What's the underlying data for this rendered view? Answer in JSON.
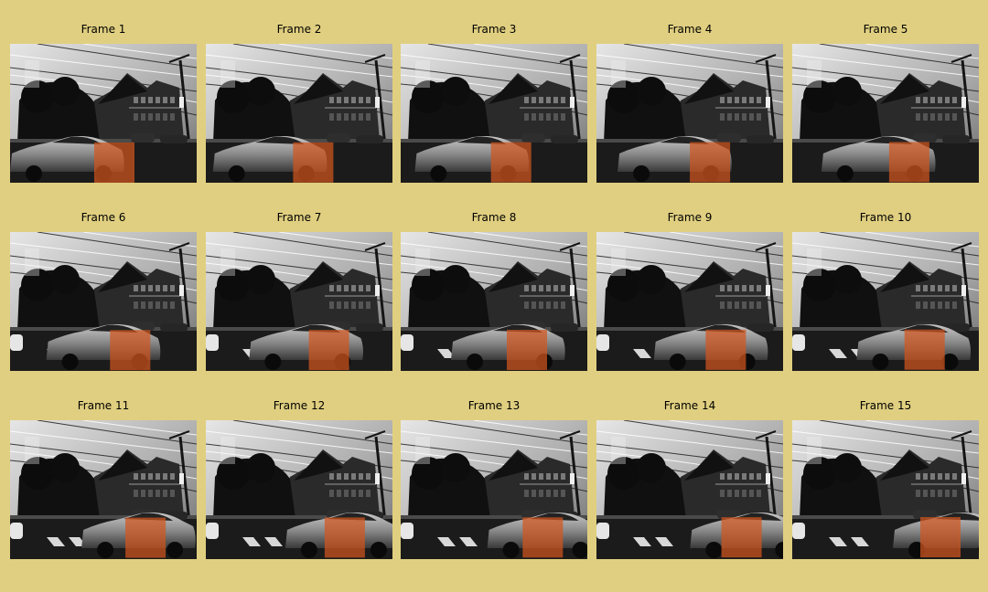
{
  "figure": {
    "background_color": "#e0cf80",
    "overlay_color": "#d2561e",
    "image_content": "grayscale street photo: black sedan driving past a tudor-style house, power lines and utility pole; orange tracking box on the car"
  },
  "frames": [
    {
      "title": "Frame 1",
      "progress": 0.0
    },
    {
      "title": "Frame 2",
      "progress": 0.07
    },
    {
      "title": "Frame 3",
      "progress": 0.14
    },
    {
      "title": "Frame 4",
      "progress": 0.21
    },
    {
      "title": "Frame 5",
      "progress": 0.29
    },
    {
      "title": "Frame 6",
      "progress": 0.36
    },
    {
      "title": "Frame 7",
      "progress": 0.43
    },
    {
      "title": "Frame 8",
      "progress": 0.5
    },
    {
      "title": "Frame 9",
      "progress": 0.57
    },
    {
      "title": "Frame 10",
      "progress": 0.64
    },
    {
      "title": "Frame 11",
      "progress": 0.71
    },
    {
      "title": "Frame 12",
      "progress": 0.79
    },
    {
      "title": "Frame 13",
      "progress": 0.86
    },
    {
      "title": "Frame 14",
      "progress": 0.93
    },
    {
      "title": "Frame 15",
      "progress": 1.0
    }
  ]
}
